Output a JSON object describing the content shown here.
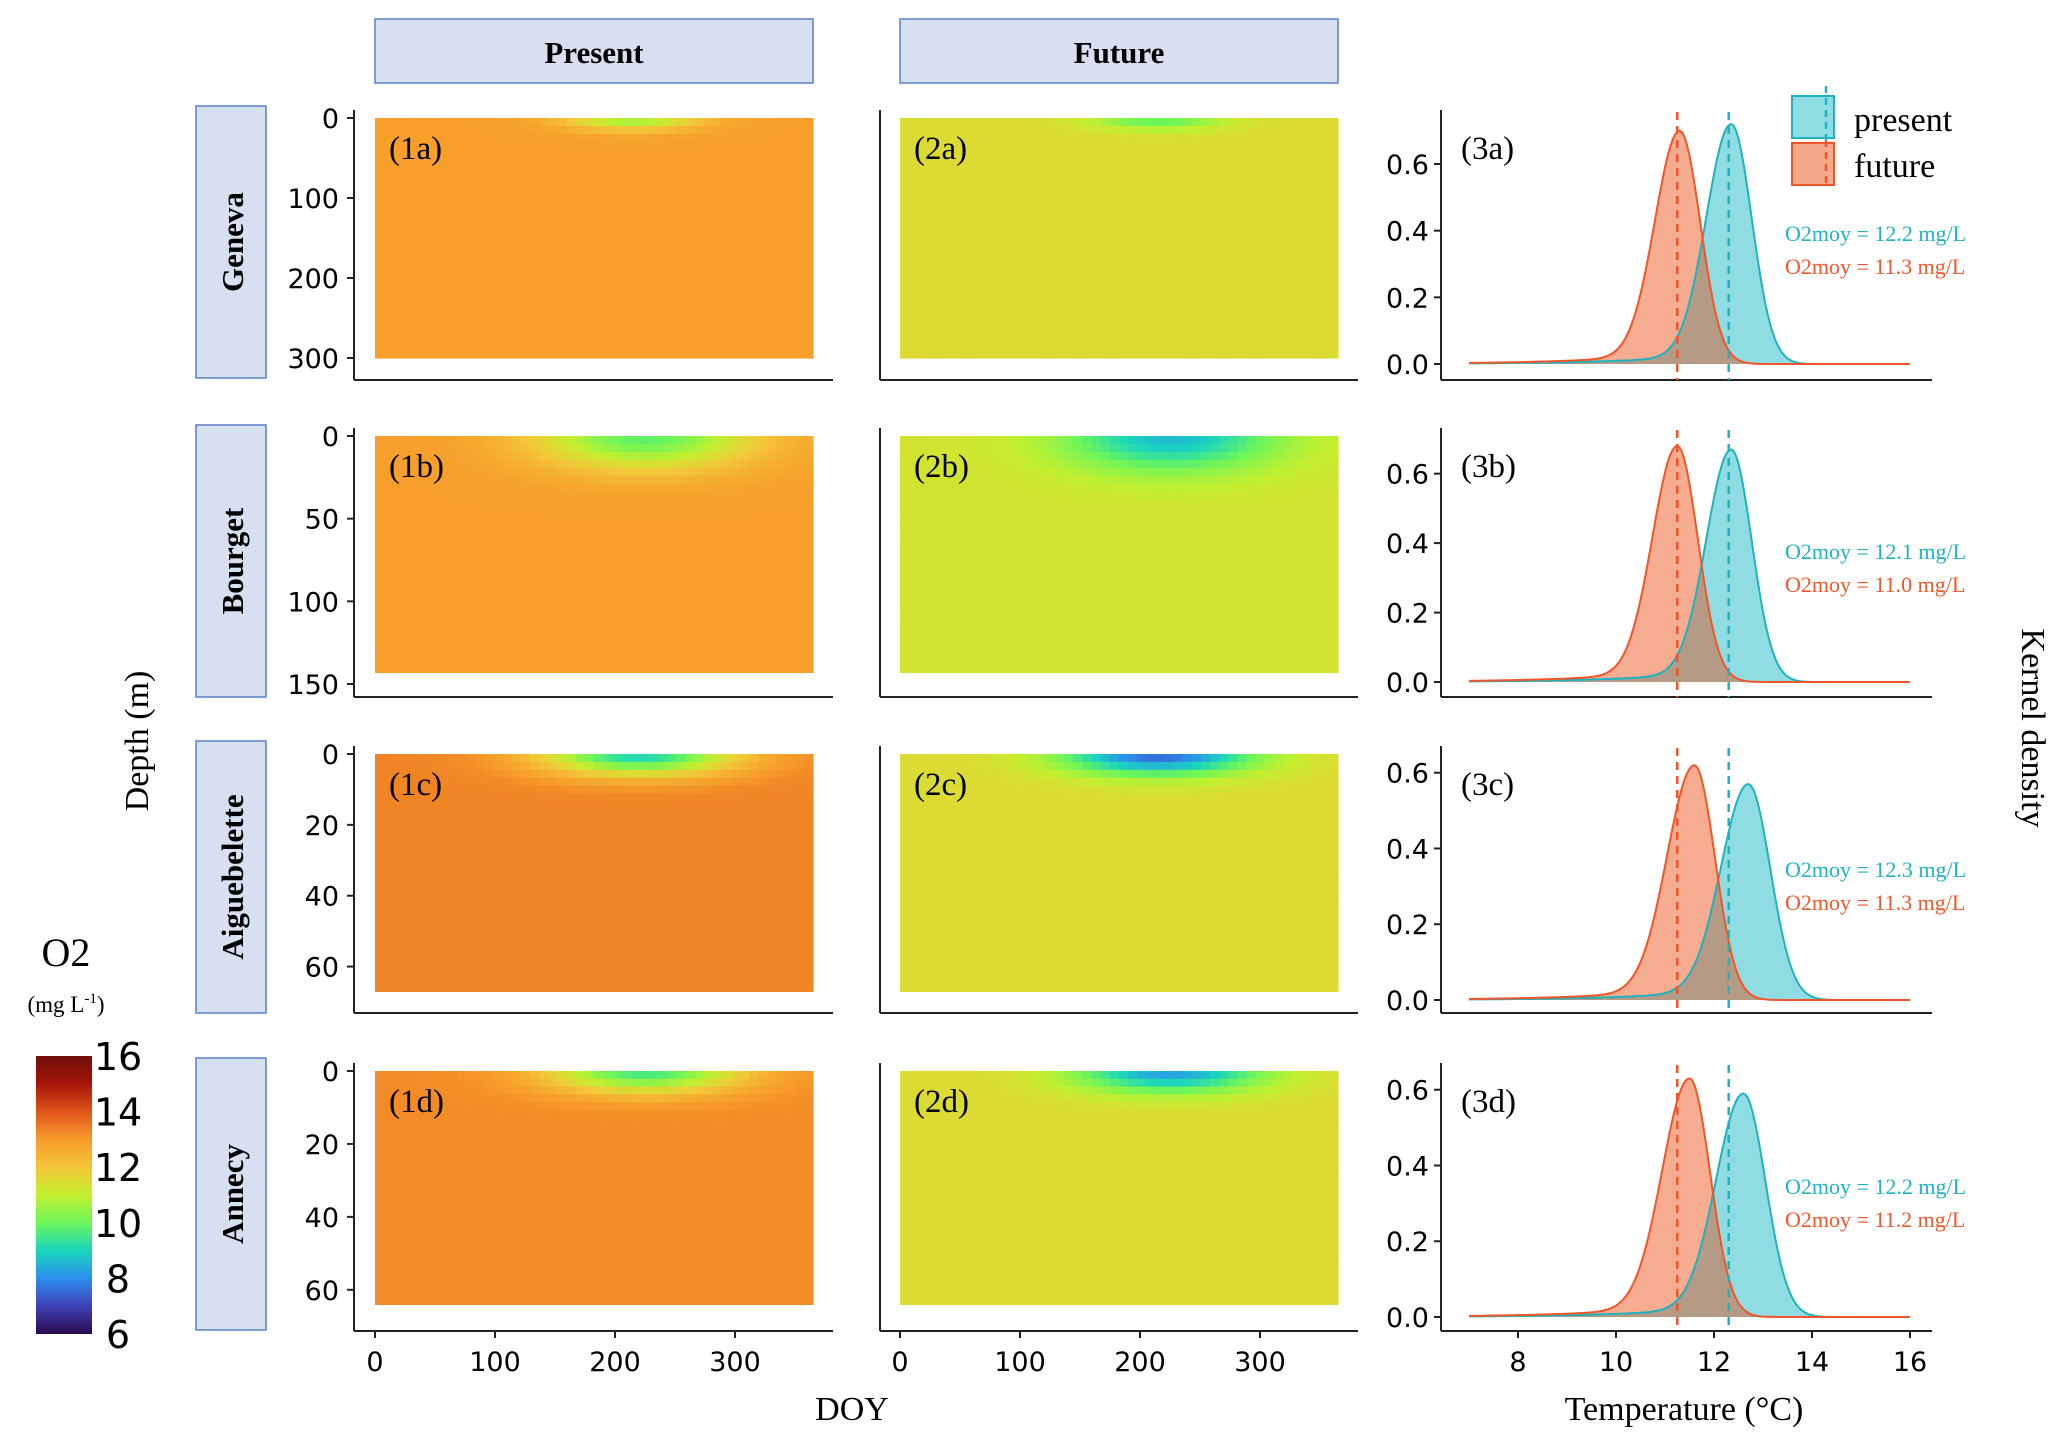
{
  "column_headers": [
    "Present",
    "Future"
  ],
  "row_labels": [
    "Geneva",
    "Bourget",
    "Aiguebelette",
    "Annecy"
  ],
  "y_axis_label": "Depth (m)",
  "x_axis_label_heatmap": "DOY",
  "x_axis_label_density": "Temperature (°C)",
  "y_axis_label_density": "Kernel density",
  "colorbar": {
    "title": "O2",
    "units_base": "(mg L",
    "units_sup": "-1",
    "units_close": ")",
    "ticks": [
      "16",
      "14",
      "12",
      "10",
      "8",
      "6"
    ],
    "min": 6,
    "max": 16,
    "colors": [
      "#2a0a4d",
      "#3e3fb6",
      "#2c8ff0",
      "#19d6bd",
      "#6cf65a",
      "#c3ef2e",
      "#f4c638",
      "#f79a2a",
      "#e1531a",
      "#a61508",
      "#6e0d0a"
    ]
  },
  "legend": {
    "present": "present",
    "future": "future"
  },
  "colors": {
    "present": "#1fb3c0",
    "future": "#f0562a",
    "present_fill": "#8fdde2",
    "future_fill": "#f6a88a",
    "overlap_fill": "#b59a86",
    "header_fill": "#d6e0f0",
    "header_border": "#5a80c8"
  },
  "chart_data": [
    {
      "type": "heatmap",
      "panel": "(1a)",
      "lake": "Geneva",
      "scenario": "Present",
      "xlabel": "DOY",
      "ylabel": "Depth (m)",
      "x_ticks": [
        0,
        100,
        200,
        300
      ],
      "y_ticks": [
        0,
        100,
        200,
        300
      ],
      "xlim": [
        0,
        365
      ],
      "ylim": [
        0,
        310
      ],
      "depth_max": 300,
      "bulk_o2": 12.9,
      "features": [
        {
          "doy": 215,
          "depth": 0,
          "o2": 10.5,
          "doy_radius": 55,
          "depth_radius": 15
        }
      ]
    },
    {
      "type": "heatmap",
      "panel": "(2a)",
      "lake": "Geneva",
      "scenario": "Future",
      "xlabel": "DOY",
      "ylabel": "",
      "x_ticks": [
        0,
        100,
        200,
        300
      ],
      "y_ticks": [],
      "xlim": [
        0,
        365
      ],
      "ylim": [
        0,
        310
      ],
      "depth_max": 300,
      "bulk_o2": 11.5,
      "features": [
        {
          "doy": 215,
          "depth": 0,
          "o2": 9.8,
          "doy_radius": 55,
          "depth_radius": 15
        }
      ]
    },
    {
      "type": "area",
      "panel": "(3a)",
      "lake": "Geneva",
      "xlabel": "Temperature (°C)",
      "ylabel": "Kernel density",
      "xlim": [
        7,
        16
      ],
      "ylim": [
        0,
        0.75
      ],
      "x_ticks": [
        8,
        10,
        12,
        14,
        16
      ],
      "y_ticks": [
        0.0,
        0.2,
        0.4,
        0.6
      ],
      "series": [
        {
          "name": "present",
          "peak_x": 12.35,
          "peak_y": 0.72,
          "width_left": 0.5,
          "width_right": 0.42
        },
        {
          "name": "future",
          "peak_x": 11.3,
          "peak_y": 0.7,
          "width_left": 0.5,
          "width_right": 0.42
        }
      ],
      "vlines": {
        "present": 12.3,
        "future": 11.25
      },
      "annotations": [
        "O2moy = 12.2 mg/L",
        "O2moy = 11.3 mg/L"
      ]
    },
    {
      "type": "heatmap",
      "panel": "(1b)",
      "lake": "Bourget",
      "scenario": "Present",
      "xlabel": "DOY",
      "ylabel": "Depth (m)",
      "x_ticks": [
        0,
        100,
        200,
        300
      ],
      "y_ticks": [
        0,
        50,
        100,
        150
      ],
      "xlim": [
        0,
        365
      ],
      "ylim": [
        0,
        150
      ],
      "depth_max": 143,
      "bulk_o2": 12.9,
      "features": [
        {
          "doy": 225,
          "depth": 0,
          "o2": 9.8,
          "doy_radius": 90,
          "depth_radius": 20
        }
      ]
    },
    {
      "type": "heatmap",
      "panel": "(2b)",
      "lake": "Bourget",
      "scenario": "Future",
      "xlabel": "DOY",
      "ylabel": "",
      "x_ticks": [
        0,
        100,
        200,
        300
      ],
      "y_ticks": [],
      "xlim": [
        0,
        365
      ],
      "ylim": [
        0,
        150
      ],
      "depth_max": 143,
      "bulk_o2": 11.3,
      "features": [
        {
          "doy": 225,
          "depth": 0,
          "o2": 8.6,
          "doy_radius": 90,
          "depth_radius": 22
        }
      ]
    },
    {
      "type": "area",
      "panel": "(3b)",
      "lake": "Bourget",
      "xlabel": "Temperature (°C)",
      "ylabel": "Kernel density",
      "xlim": [
        7,
        16
      ],
      "ylim": [
        0,
        0.72
      ],
      "x_ticks": [
        8,
        10,
        12,
        14,
        16
      ],
      "y_ticks": [
        0.0,
        0.2,
        0.4,
        0.6
      ],
      "series": [
        {
          "name": "present",
          "peak_x": 12.35,
          "peak_y": 0.67,
          "width_left": 0.5,
          "width_right": 0.42
        },
        {
          "name": "future",
          "peak_x": 11.25,
          "peak_y": 0.68,
          "width_left": 0.5,
          "width_right": 0.42
        }
      ],
      "vlines": {
        "present": 12.3,
        "future": 11.25
      },
      "annotations": [
        "O2moy = 12.1 mg/L",
        "O2moy = 11.0 mg/L"
      ]
    },
    {
      "type": "heatmap",
      "panel": "(1c)",
      "lake": "Aiguebelette",
      "scenario": "Present",
      "xlabel": "DOY",
      "ylabel": "Depth (m)",
      "x_ticks": [
        0,
        100,
        200,
        300
      ],
      "y_ticks": [
        0,
        20,
        40,
        60
      ],
      "xlim": [
        0,
        365
      ],
      "ylim": [
        0,
        70
      ],
      "depth_max": 67,
      "bulk_o2": 13.3,
      "features": [
        {
          "doy": 220,
          "depth": 0,
          "o2": 9.0,
          "doy_radius": 80,
          "depth_radius": 6
        }
      ]
    },
    {
      "type": "heatmap",
      "panel": "(2c)",
      "lake": "Aiguebelette",
      "scenario": "Future",
      "xlabel": "DOY",
      "ylabel": "",
      "x_ticks": [
        0,
        100,
        200,
        300
      ],
      "y_ticks": [],
      "xlim": [
        0,
        365
      ],
      "ylim": [
        0,
        70
      ],
      "depth_max": 67,
      "bulk_o2": 11.5,
      "features": [
        {
          "doy": 215,
          "depth": 0,
          "o2": 7.5,
          "doy_radius": 80,
          "depth_radius": 6
        }
      ]
    },
    {
      "type": "area",
      "panel": "(3c)",
      "lake": "Aiguebelette",
      "xlabel": "Temperature (°C)",
      "ylabel": "Kernel density",
      "xlim": [
        7,
        16
      ],
      "ylim": [
        0,
        0.66
      ],
      "x_ticks": [
        8,
        10,
        12,
        14,
        16
      ],
      "y_ticks": [
        0.0,
        0.2,
        0.4,
        0.6
      ],
      "series": [
        {
          "name": "present",
          "peak_x": 12.7,
          "peak_y": 0.57,
          "width_left": 0.55,
          "width_right": 0.45
        },
        {
          "name": "future",
          "peak_x": 11.6,
          "peak_y": 0.62,
          "width_left": 0.55,
          "width_right": 0.42
        }
      ],
      "vlines": {
        "present": 12.3,
        "future": 11.25
      },
      "annotations": [
        "O2moy = 12.3 mg/L",
        "O2moy = 11.3 mg/L"
      ]
    },
    {
      "type": "heatmap",
      "panel": "(1d)",
      "lake": "Annecy",
      "scenario": "Present",
      "xlabel": "DOY",
      "ylabel": "Depth (m)",
      "x_ticks": [
        0,
        100,
        200,
        300
      ],
      "y_ticks": [
        0,
        20,
        40,
        60
      ],
      "xlim": [
        0,
        365
      ],
      "ylim": [
        0,
        68
      ],
      "depth_max": 64,
      "bulk_o2": 13.2,
      "features": [
        {
          "doy": 225,
          "depth": 0,
          "o2": 9.5,
          "doy_radius": 80,
          "depth_radius": 6
        }
      ]
    },
    {
      "type": "heatmap",
      "panel": "(2d)",
      "lake": "Annecy",
      "scenario": "Future",
      "xlabel": "DOY",
      "ylabel": "",
      "x_ticks": [
        0,
        100,
        200,
        300
      ],
      "y_ticks": [],
      "xlim": [
        0,
        365
      ],
      "ylim": [
        0,
        68
      ],
      "depth_max": 64,
      "bulk_o2": 11.5,
      "features": [
        {
          "doy": 225,
          "depth": 0,
          "o2": 8.2,
          "doy_radius": 80,
          "depth_radius": 6
        }
      ]
    },
    {
      "type": "area",
      "panel": "(3d)",
      "lake": "Annecy",
      "xlabel": "Temperature (°C)",
      "ylabel": "Kernel density",
      "xlim": [
        7,
        16
      ],
      "ylim": [
        0,
        0.66
      ],
      "x_ticks": [
        8,
        10,
        12,
        14,
        16
      ],
      "y_ticks": [
        0.0,
        0.2,
        0.4,
        0.6
      ],
      "series": [
        {
          "name": "present",
          "peak_x": 12.6,
          "peak_y": 0.59,
          "width_left": 0.55,
          "width_right": 0.45
        },
        {
          "name": "future",
          "peak_x": 11.5,
          "peak_y": 0.63,
          "width_left": 0.55,
          "width_right": 0.42
        }
      ],
      "vlines": {
        "present": 12.3,
        "future": 11.25
      },
      "annotations": [
        "O2moy = 12.2 mg/L",
        "O2moy = 11.2 mg/L"
      ]
    }
  ]
}
